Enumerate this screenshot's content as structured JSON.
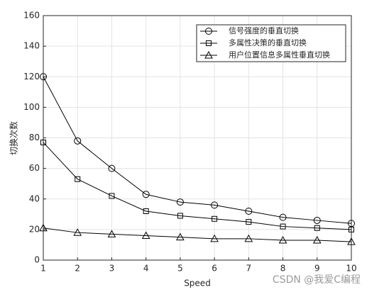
{
  "chart_data": {
    "type": "line",
    "xlabel": "Speed",
    "ylabel": "切换次数",
    "x": [
      1,
      2,
      3,
      4,
      5,
      6,
      7,
      8,
      9,
      10
    ],
    "xlim": [
      1,
      10
    ],
    "xticks": [
      1,
      2,
      3,
      4,
      5,
      6,
      7,
      8,
      9,
      10
    ],
    "ylim": [
      0,
      160
    ],
    "yticks": [
      0,
      20,
      40,
      60,
      80,
      100,
      120,
      140,
      160
    ],
    "grid": true,
    "legend": "upper right",
    "series": [
      {
        "name": "信号强度的垂直切换",
        "color": "#000000",
        "marker": "circle",
        "values": [
          120,
          78,
          60,
          43,
          38,
          36,
          32,
          28,
          26,
          24
        ]
      },
      {
        "name": "多属性决策的垂直切换",
        "color": "#000000",
        "marker": "square",
        "values": [
          77,
          53,
          42,
          32,
          29,
          27,
          25,
          22,
          21,
          20
        ]
      },
      {
        "name": "用户位置信息多属性垂直切换",
        "color": "#000000",
        "marker": "triangle",
        "values": [
          21,
          18,
          17,
          16,
          15,
          14,
          14,
          13,
          13,
          12
        ]
      }
    ],
    "watermark": "CSDN @我爱C编程"
  }
}
